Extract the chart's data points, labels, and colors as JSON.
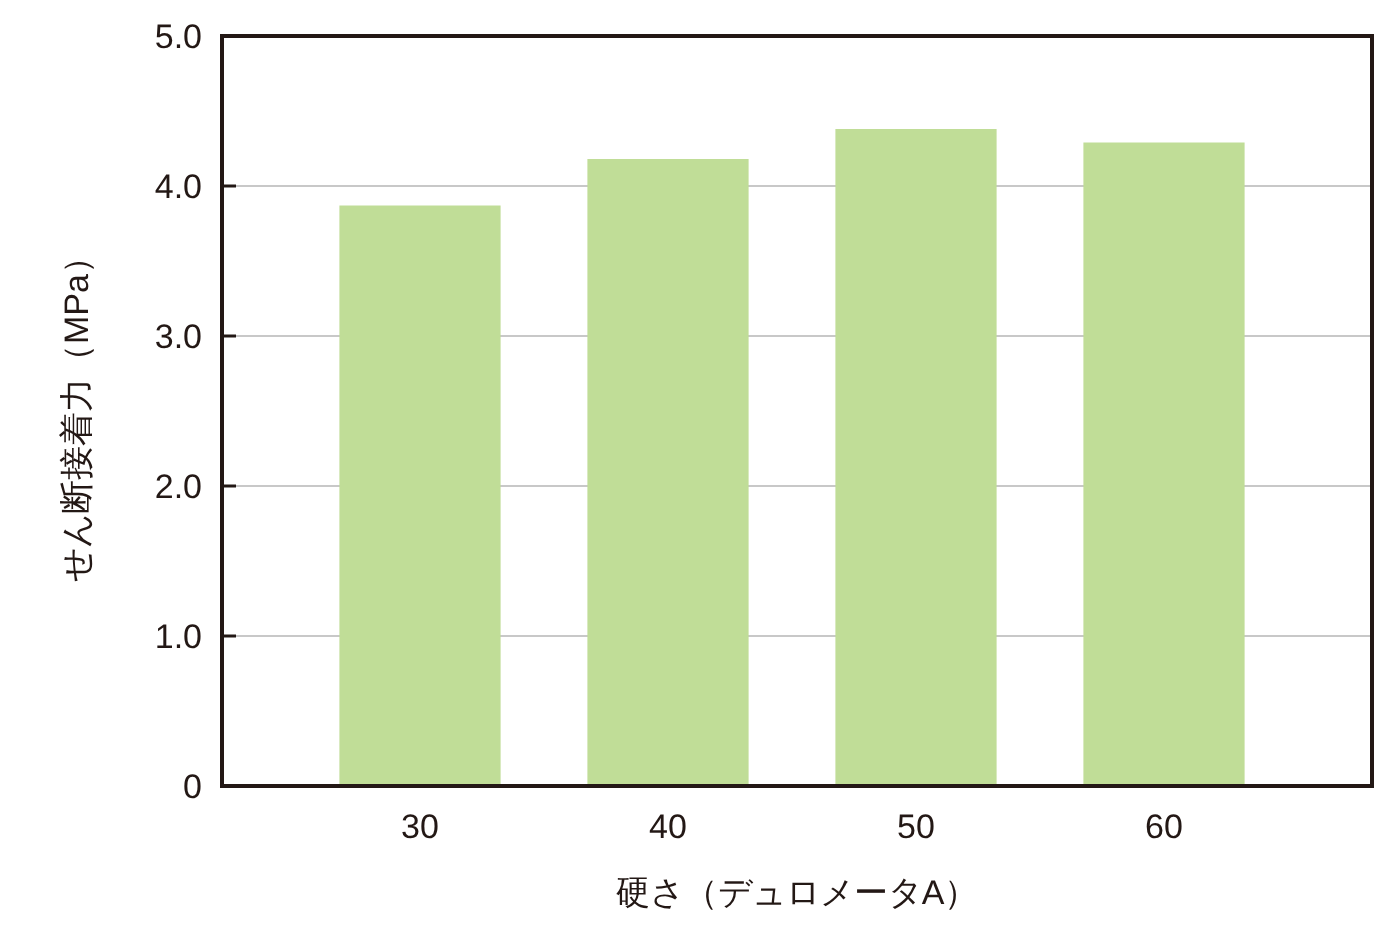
{
  "chart_data": {
    "type": "bar",
    "xlabel": "硬さ（デュロメータA）",
    "ylabel": "せん断接着力（MPa）",
    "categories": [
      "30",
      "40",
      "50",
      "60"
    ],
    "values": [
      3.87,
      4.18,
      4.38,
      4.29
    ],
    "color": "#c0dd97",
    "ylim": [
      0,
      5
    ],
    "yticks": [
      {
        "value": 0,
        "label": "0"
      },
      {
        "value": 1,
        "label": "1.0"
      },
      {
        "value": 2,
        "label": "2.0"
      },
      {
        "value": 3,
        "label": "3.0"
      },
      {
        "value": 4,
        "label": "4.0"
      },
      {
        "value": 5,
        "label": "5.0"
      }
    ],
    "grid": "y"
  }
}
